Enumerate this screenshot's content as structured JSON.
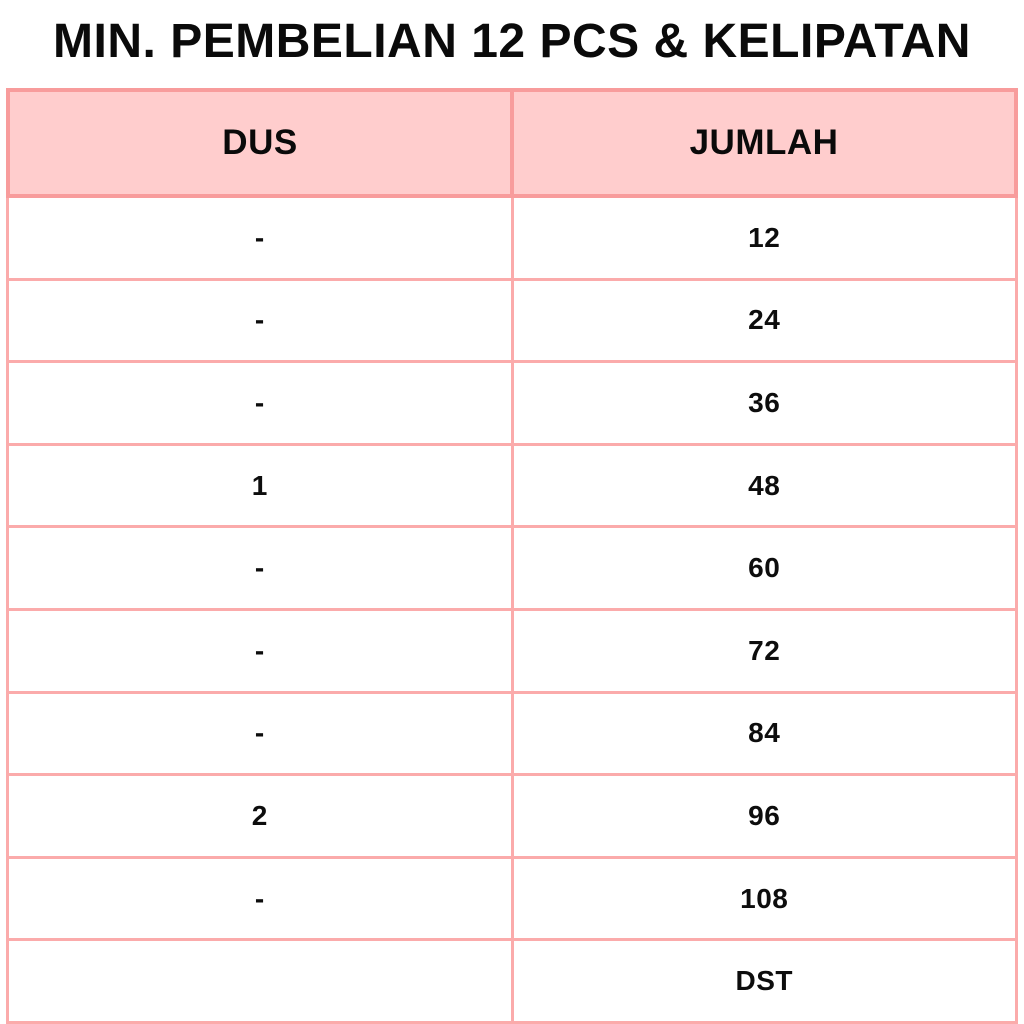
{
  "chart_data": {
    "type": "table",
    "title": "MIN. PEMBELIAN 12 PCS & KELIPATAN",
    "columns": [
      "DUS",
      "JUMLAH"
    ],
    "rows": [
      [
        "-",
        "12"
      ],
      [
        "-",
        "24"
      ],
      [
        "-",
        "36"
      ],
      [
        "1",
        "48"
      ],
      [
        "-",
        "60"
      ],
      [
        "-",
        "72"
      ],
      [
        "-",
        "84"
      ],
      [
        "2",
        "96"
      ],
      [
        "-",
        "108"
      ],
      [
        "",
        "DST"
      ]
    ]
  },
  "colors": {
    "header_background": "#FFCDCD",
    "border_strong": "#F89C9C",
    "border_light": "#FBABAB",
    "text": "#0A0A0A",
    "page_background": "#FFFFFF"
  }
}
